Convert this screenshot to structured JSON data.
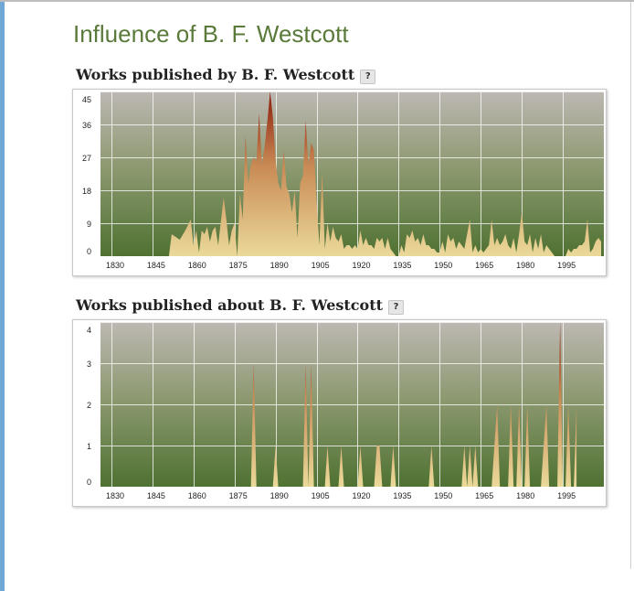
{
  "page": {
    "title": "Influence of B. F. Westcott"
  },
  "sections": [
    {
      "title": "Works published by B. F. Westcott",
      "help": "?"
    },
    {
      "title": "Works published about B. F. Westcott",
      "help": "?"
    }
  ],
  "colors": {
    "grad_top": "#bdb8b3",
    "grad_bottom": "#4f7232",
    "area_light": "#ead99a",
    "area_mid": "#c98a55",
    "area_dark": "#8b1b0b"
  },
  "chart_data": [
    {
      "type": "area",
      "title": "Works published by B. F. Westcott",
      "xlim": [
        1826,
        2010
      ],
      "ylim": [
        0,
        45
      ],
      "x_ticks": [
        1830,
        1845,
        1860,
        1875,
        1890,
        1905,
        1920,
        1935,
        1950,
        1965,
        1980,
        1995
      ],
      "y_ticks": [
        0,
        9,
        18,
        27,
        36,
        45
      ],
      "grid": true,
      "legend": "none",
      "points": [
        [
          1851,
          0
        ],
        [
          1852,
          6
        ],
        [
          1853,
          5.5
        ],
        [
          1855,
          4.5
        ],
        [
          1857,
          7
        ],
        [
          1859,
          10
        ],
        [
          1860,
          3
        ],
        [
          1861,
          7
        ],
        [
          1862,
          1
        ],
        [
          1863,
          7
        ],
        [
          1864,
          6
        ],
        [
          1865,
          8
        ],
        [
          1866,
          4
        ],
        [
          1867,
          7
        ],
        [
          1868,
          8
        ],
        [
          1869,
          3
        ],
        [
          1871,
          16
        ],
        [
          1872,
          10
        ],
        [
          1873,
          3
        ],
        [
          1874,
          7
        ],
        [
          1875,
          9
        ],
        [
          1876,
          0
        ],
        [
          1877,
          17
        ],
        [
          1878,
          10
        ],
        [
          1879,
          33
        ],
        [
          1880,
          20
        ],
        [
          1881,
          25
        ],
        [
          1882,
          27
        ],
        [
          1883,
          26
        ],
        [
          1884,
          39
        ],
        [
          1885,
          25
        ],
        [
          1886,
          30
        ],
        [
          1887,
          37
        ],
        [
          1888,
          45
        ],
        [
          1889,
          38
        ],
        [
          1890,
          26
        ],
        [
          1891,
          20
        ],
        [
          1892,
          18
        ],
        [
          1893,
          29
        ],
        [
          1894,
          19
        ],
        [
          1895,
          17
        ],
        [
          1896,
          12
        ],
        [
          1897,
          18
        ],
        [
          1898,
          5
        ],
        [
          1899,
          20
        ],
        [
          1900,
          22
        ],
        [
          1901,
          37
        ],
        [
          1902,
          25
        ],
        [
          1903,
          31
        ],
        [
          1904,
          29
        ],
        [
          1905,
          15
        ],
        [
          1906,
          3
        ],
        [
          1907,
          23
        ],
        [
          1908,
          2
        ],
        [
          1909,
          9
        ],
        [
          1910,
          4
        ],
        [
          1911,
          8
        ],
        [
          1912,
          5
        ],
        [
          1913,
          4
        ],
        [
          1914,
          6
        ],
        [
          1915,
          2
        ],
        [
          1916,
          3
        ],
        [
          1917,
          3
        ],
        [
          1918,
          2
        ],
        [
          1919,
          3
        ],
        [
          1920,
          2
        ],
        [
          1921,
          7
        ],
        [
          1922,
          3
        ],
        [
          1923,
          5
        ],
        [
          1924,
          3
        ],
        [
          1925,
          3
        ],
        [
          1926,
          2
        ],
        [
          1927,
          5
        ],
        [
          1928,
          4
        ],
        [
          1929,
          5
        ],
        [
          1930,
          2
        ],
        [
          1931,
          5
        ],
        [
          1932,
          2
        ],
        [
          1933,
          1
        ],
        [
          1934,
          0
        ],
        [
          1935,
          0
        ],
        [
          1936,
          3
        ],
        [
          1937,
          1
        ],
        [
          1938,
          6
        ],
        [
          1939,
          5
        ],
        [
          1940,
          7
        ],
        [
          1941,
          4
        ],
        [
          1942,
          5
        ],
        [
          1943,
          3
        ],
        [
          1944,
          6
        ],
        [
          1945,
          3
        ],
        [
          1946,
          3
        ],
        [
          1947,
          2
        ],
        [
          1948,
          2
        ],
        [
          1949,
          1
        ],
        [
          1950,
          1
        ],
        [
          1951,
          4
        ],
        [
          1952,
          1
        ],
        [
          1953,
          6
        ],
        [
          1954,
          4
        ],
        [
          1955,
          5
        ],
        [
          1956,
          2
        ],
        [
          1957,
          4
        ],
        [
          1958,
          3
        ],
        [
          1959,
          2
        ],
        [
          1960,
          6
        ],
        [
          1961,
          10
        ],
        [
          1962,
          1
        ],
        [
          1963,
          3
        ],
        [
          1964,
          1
        ],
        [
          1965,
          2
        ],
        [
          1966,
          1
        ],
        [
          1967,
          2
        ],
        [
          1968,
          3
        ],
        [
          1969,
          10
        ],
        [
          1970,
          3
        ],
        [
          1971,
          5
        ],
        [
          1972,
          3
        ],
        [
          1973,
          4
        ],
        [
          1974,
          6
        ],
        [
          1975,
          3
        ],
        [
          1976,
          2
        ],
        [
          1977,
          5
        ],
        [
          1978,
          1
        ],
        [
          1979,
          6
        ],
        [
          1980,
          12
        ],
        [
          1981,
          4
        ],
        [
          1982,
          3
        ],
        [
          1983,
          6
        ],
        [
          1984,
          1
        ],
        [
          1985,
          5
        ],
        [
          1986,
          2
        ],
        [
          1987,
          6
        ],
        [
          1988,
          1
        ],
        [
          1989,
          3
        ],
        [
          1990,
          2
        ],
        [
          1991,
          1
        ],
        [
          1992,
          0
        ],
        [
          1995,
          0
        ],
        [
          1996,
          0
        ],
        [
          1997,
          2
        ],
        [
          1998,
          1
        ],
        [
          1999,
          2
        ],
        [
          2000,
          2
        ],
        [
          2001,
          3
        ],
        [
          2002,
          3
        ],
        [
          2003,
          4
        ],
        [
          2004,
          10
        ],
        [
          2005,
          1
        ],
        [
          2006,
          2
        ],
        [
          2007,
          4
        ],
        [
          2008,
          5
        ],
        [
          2009,
          4
        ]
      ]
    },
    {
      "type": "area",
      "title": "Works published about B. F. Westcott",
      "xlim": [
        1826,
        2010
      ],
      "ylim": [
        0,
        4
      ],
      "x_ticks": [
        1830,
        1845,
        1860,
        1875,
        1890,
        1905,
        1920,
        1935,
        1950,
        1965,
        1980,
        1995
      ],
      "y_ticks": [
        0,
        1,
        2,
        3,
        4
      ],
      "grid": true,
      "legend": "none",
      "points": [
        [
          1881,
          0
        ],
        [
          1882,
          3
        ],
        [
          1883,
          0
        ],
        [
          1889,
          0
        ],
        [
          1890,
          1
        ],
        [
          1891,
          0
        ],
        [
          1900,
          0
        ],
        [
          1901,
          3
        ],
        [
          1902,
          0
        ],
        [
          1903,
          3
        ],
        [
          1904,
          0
        ],
        [
          1908,
          0
        ],
        [
          1909,
          1
        ],
        [
          1910,
          0
        ],
        [
          1913,
          0
        ],
        [
          1914,
          1
        ],
        [
          1915,
          0
        ],
        [
          1920,
          0
        ],
        [
          1921,
          1
        ],
        [
          1922,
          0
        ],
        [
          1926,
          0
        ],
        [
          1927,
          1
        ],
        [
          1928,
          1
        ],
        [
          1929,
          0
        ],
        [
          1932,
          0
        ],
        [
          1933,
          1
        ],
        [
          1934,
          0
        ],
        [
          1946,
          0
        ],
        [
          1947,
          1
        ],
        [
          1948,
          0
        ],
        [
          1958,
          0
        ],
        [
          1959,
          1
        ],
        [
          1960,
          0
        ],
        [
          1961,
          1
        ],
        [
          1962,
          0
        ],
        [
          1963,
          1
        ],
        [
          1964,
          0
        ],
        [
          1969,
          0
        ],
        [
          1971,
          2
        ],
        [
          1972,
          0
        ],
        [
          1975,
          0
        ],
        [
          1976,
          2
        ],
        [
          1977,
          0
        ],
        [
          1978,
          0
        ],
        [
          1979,
          2
        ],
        [
          1980,
          0
        ],
        [
          1981,
          0
        ],
        [
          1982,
          2
        ],
        [
          1983,
          0
        ],
        [
          1987,
          0
        ],
        [
          1988,
          1
        ],
        [
          1989,
          2
        ],
        [
          1990,
          0
        ],
        [
          1993,
          0
        ],
        [
          1994,
          4
        ],
        [
          1995,
          0
        ],
        [
          1996,
          0
        ],
        [
          1997,
          2
        ],
        [
          1998,
          0
        ],
        [
          1999,
          0
        ],
        [
          2000,
          2
        ]
      ]
    }
  ]
}
